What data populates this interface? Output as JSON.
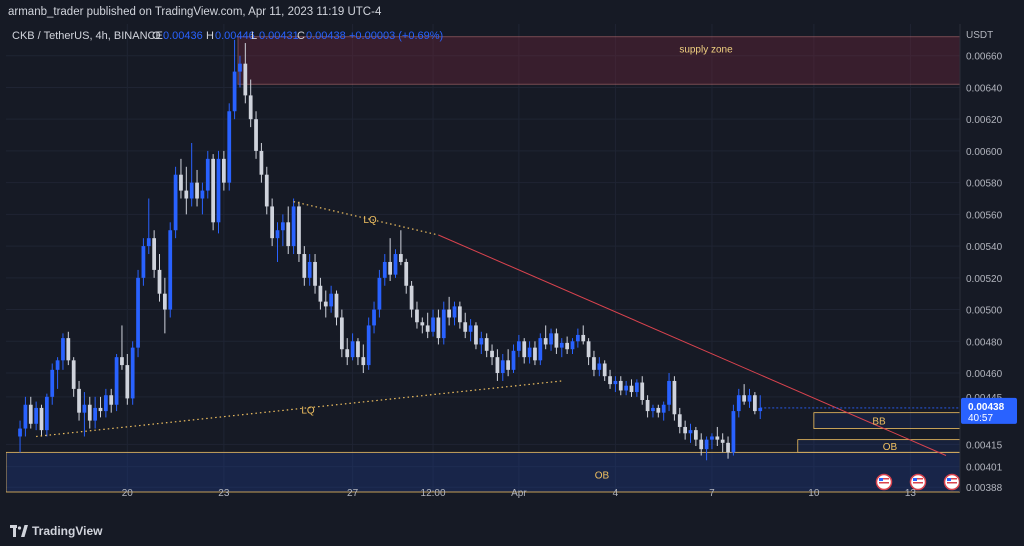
{
  "header": {
    "publisher": "armanb_trader published on TradingView.com, Apr 11, 2023 11:19 UTC-4"
  },
  "footer": {
    "brand": "TradingView"
  },
  "legend": {
    "symbol": "CKB / TetherUS, 4h, BINANCE",
    "o_label": "O",
    "o_value": "0.00436",
    "h_label": "H",
    "h_value": "0.00446",
    "l_label": "L",
    "l_value": "0.00431",
    "c_label": "C",
    "c_value": "0.00438",
    "change": "+0.00003 (+0.69%)"
  },
  "colors": {
    "up": "#2962ff",
    "down": "#cfd3dc",
    "trend": "#d9434e",
    "zone": "#f0c060",
    "bg": "#161a25"
  },
  "chart_data": {
    "type": "candlestick",
    "title": "CKB / TetherUS, 4h, BINANCE",
    "currency": "USDT",
    "ylim": [
      0.00385,
      0.0068
    ],
    "y_ticks": [
      "0.00660",
      "0.00640",
      "0.00620",
      "0.00600",
      "0.00580",
      "0.00560",
      "0.00540",
      "0.00520",
      "0.00500",
      "0.00480",
      "0.00460",
      "0.00445",
      "0.00415",
      "0.00401",
      "0.00388"
    ],
    "x_ticks": [
      {
        "label": "20",
        "i": 21
      },
      {
        "label": "23",
        "i": 39
      },
      {
        "label": "27",
        "i": 63
      },
      {
        "label": "12:00",
        "i": 78
      },
      {
        "label": "Apr",
        "i": 94
      },
      {
        "label": "4",
        "i": 112
      },
      {
        "label": "7",
        "i": 130
      },
      {
        "label": "10",
        "i": 149
      },
      {
        "label": "13",
        "i": 167
      }
    ],
    "n_slots": 176,
    "candles": [
      {
        "o": 0.0042,
        "h": 0.0043,
        "l": 0.0041,
        "c": 0.00425
      },
      {
        "o": 0.00425,
        "h": 0.00445,
        "l": 0.0042,
        "c": 0.0044
      },
      {
        "o": 0.0044,
        "h": 0.00445,
        "l": 0.00425,
        "c": 0.00428
      },
      {
        "o": 0.00428,
        "h": 0.00442,
        "l": 0.00424,
        "c": 0.00438
      },
      {
        "o": 0.00438,
        "h": 0.0044,
        "l": 0.0042,
        "c": 0.00424
      },
      {
        "o": 0.00424,
        "h": 0.00447,
        "l": 0.0042,
        "c": 0.00445
      },
      {
        "o": 0.00445,
        "h": 0.00466,
        "l": 0.0044,
        "c": 0.00462
      },
      {
        "o": 0.00462,
        "h": 0.0047,
        "l": 0.0045,
        "c": 0.00468
      },
      {
        "o": 0.00468,
        "h": 0.00485,
        "l": 0.00462,
        "c": 0.00482
      },
      {
        "o": 0.00482,
        "h": 0.00486,
        "l": 0.00465,
        "c": 0.00468
      },
      {
        "o": 0.00468,
        "h": 0.0047,
        "l": 0.00445,
        "c": 0.0045
      },
      {
        "o": 0.0045,
        "h": 0.00455,
        "l": 0.0043,
        "c": 0.00435
      },
      {
        "o": 0.00435,
        "h": 0.00448,
        "l": 0.0042,
        "c": 0.0044
      },
      {
        "o": 0.0044,
        "h": 0.00445,
        "l": 0.00425,
        "c": 0.0043
      },
      {
        "o": 0.0043,
        "h": 0.00445,
        "l": 0.00425,
        "c": 0.00438
      },
      {
        "o": 0.00438,
        "h": 0.00445,
        "l": 0.00432,
        "c": 0.00436
      },
      {
        "o": 0.00436,
        "h": 0.0045,
        "l": 0.00432,
        "c": 0.00446
      },
      {
        "o": 0.00446,
        "h": 0.0045,
        "l": 0.00435,
        "c": 0.0044
      },
      {
        "o": 0.0044,
        "h": 0.00472,
        "l": 0.00436,
        "c": 0.0047
      },
      {
        "o": 0.0047,
        "h": 0.0049,
        "l": 0.00462,
        "c": 0.00465
      },
      {
        "o": 0.00465,
        "h": 0.00472,
        "l": 0.0044,
        "c": 0.00444
      },
      {
        "o": 0.00444,
        "h": 0.0048,
        "l": 0.0044,
        "c": 0.00476
      },
      {
        "o": 0.00476,
        "h": 0.00525,
        "l": 0.0047,
        "c": 0.0052
      },
      {
        "o": 0.0052,
        "h": 0.00545,
        "l": 0.00515,
        "c": 0.0054
      },
      {
        "o": 0.0054,
        "h": 0.0057,
        "l": 0.00535,
        "c": 0.00545
      },
      {
        "o": 0.00545,
        "h": 0.0055,
        "l": 0.0052,
        "c": 0.00525
      },
      {
        "o": 0.00525,
        "h": 0.00535,
        "l": 0.00505,
        "c": 0.0051
      },
      {
        "o": 0.0051,
        "h": 0.0052,
        "l": 0.00485,
        "c": 0.005
      },
      {
        "o": 0.005,
        "h": 0.00555,
        "l": 0.00495,
        "c": 0.0055
      },
      {
        "o": 0.0055,
        "h": 0.0059,
        "l": 0.00545,
        "c": 0.00585
      },
      {
        "o": 0.00585,
        "h": 0.00595,
        "l": 0.0057,
        "c": 0.00575
      },
      {
        "o": 0.00575,
        "h": 0.0059,
        "l": 0.0056,
        "c": 0.0057
      },
      {
        "o": 0.0057,
        "h": 0.00605,
        "l": 0.00565,
        "c": 0.0058
      },
      {
        "o": 0.0058,
        "h": 0.00588,
        "l": 0.00565,
        "c": 0.0057
      },
      {
        "o": 0.0057,
        "h": 0.0058,
        "l": 0.0056,
        "c": 0.00575
      },
      {
        "o": 0.00575,
        "h": 0.006,
        "l": 0.0057,
        "c": 0.00595
      },
      {
        "o": 0.00595,
        "h": 0.00598,
        "l": 0.0055,
        "c": 0.00555
      },
      {
        "o": 0.00555,
        "h": 0.006,
        "l": 0.00548,
        "c": 0.00595
      },
      {
        "o": 0.00595,
        "h": 0.006,
        "l": 0.00575,
        "c": 0.0058
      },
      {
        "o": 0.0058,
        "h": 0.0063,
        "l": 0.00575,
        "c": 0.00625
      },
      {
        "o": 0.00625,
        "h": 0.0067,
        "l": 0.0062,
        "c": 0.0065
      },
      {
        "o": 0.0065,
        "h": 0.0066,
        "l": 0.0064,
        "c": 0.00655
      },
      {
        "o": 0.00655,
        "h": 0.00668,
        "l": 0.0063,
        "c": 0.00635
      },
      {
        "o": 0.00635,
        "h": 0.00645,
        "l": 0.00615,
        "c": 0.0062
      },
      {
        "o": 0.0062,
        "h": 0.00625,
        "l": 0.00595,
        "c": 0.006
      },
      {
        "o": 0.006,
        "h": 0.00605,
        "l": 0.0058,
        "c": 0.00585
      },
      {
        "o": 0.00585,
        "h": 0.0059,
        "l": 0.0056,
        "c": 0.00565
      },
      {
        "o": 0.00565,
        "h": 0.0057,
        "l": 0.0054,
        "c": 0.00545
      },
      {
        "o": 0.00545,
        "h": 0.00555,
        "l": 0.0053,
        "c": 0.0055
      },
      {
        "o": 0.0055,
        "h": 0.0056,
        "l": 0.0054,
        "c": 0.00555
      },
      {
        "o": 0.00555,
        "h": 0.00565,
        "l": 0.00535,
        "c": 0.0054
      },
      {
        "o": 0.0054,
        "h": 0.0057,
        "l": 0.00535,
        "c": 0.00565
      },
      {
        "o": 0.00565,
        "h": 0.00568,
        "l": 0.0053,
        "c": 0.00535
      },
      {
        "o": 0.00535,
        "h": 0.0054,
        "l": 0.00515,
        "c": 0.0052
      },
      {
        "o": 0.0052,
        "h": 0.00535,
        "l": 0.00515,
        "c": 0.0053
      },
      {
        "o": 0.0053,
        "h": 0.00535,
        "l": 0.0051,
        "c": 0.00515
      },
      {
        "o": 0.00515,
        "h": 0.0052,
        "l": 0.005,
        "c": 0.00505
      },
      {
        "o": 0.00505,
        "h": 0.00512,
        "l": 0.00495,
        "c": 0.00502
      },
      {
        "o": 0.00502,
        "h": 0.00515,
        "l": 0.00498,
        "c": 0.0051
      },
      {
        "o": 0.0051,
        "h": 0.00512,
        "l": 0.0049,
        "c": 0.00495
      },
      {
        "o": 0.00495,
        "h": 0.005,
        "l": 0.0047,
        "c": 0.00475
      },
      {
        "o": 0.00475,
        "h": 0.00482,
        "l": 0.00465,
        "c": 0.0047
      },
      {
        "o": 0.0047,
        "h": 0.00485,
        "l": 0.00468,
        "c": 0.0048
      },
      {
        "o": 0.0048,
        "h": 0.00482,
        "l": 0.00465,
        "c": 0.0047
      },
      {
        "o": 0.0047,
        "h": 0.00478,
        "l": 0.0046,
        "c": 0.00465
      },
      {
        "o": 0.00465,
        "h": 0.00495,
        "l": 0.00462,
        "c": 0.0049
      },
      {
        "o": 0.0049,
        "h": 0.00505,
        "l": 0.00485,
        "c": 0.005
      },
      {
        "o": 0.005,
        "h": 0.00525,
        "l": 0.00495,
        "c": 0.0052
      },
      {
        "o": 0.0052,
        "h": 0.00535,
        "l": 0.00515,
        "c": 0.0053
      },
      {
        "o": 0.0053,
        "h": 0.00545,
        "l": 0.00518,
        "c": 0.00522
      },
      {
        "o": 0.00522,
        "h": 0.00538,
        "l": 0.0052,
        "c": 0.00535
      },
      {
        "o": 0.00535,
        "h": 0.0055,
        "l": 0.00528,
        "c": 0.0053
      },
      {
        "o": 0.0053,
        "h": 0.00532,
        "l": 0.0051,
        "c": 0.00515
      },
      {
        "o": 0.00515,
        "h": 0.00518,
        "l": 0.00495,
        "c": 0.005
      },
      {
        "o": 0.005,
        "h": 0.00505,
        "l": 0.00488,
        "c": 0.00492
      },
      {
        "o": 0.00492,
        "h": 0.00495,
        "l": 0.00485,
        "c": 0.0049
      },
      {
        "o": 0.0049,
        "h": 0.00498,
        "l": 0.00482,
        "c": 0.00486
      },
      {
        "o": 0.00486,
        "h": 0.005,
        "l": 0.00483,
        "c": 0.00495
      },
      {
        "o": 0.00495,
        "h": 0.005,
        "l": 0.00478,
        "c": 0.00482
      },
      {
        "o": 0.00482,
        "h": 0.00505,
        "l": 0.00478,
        "c": 0.005
      },
      {
        "o": 0.005,
        "h": 0.00508,
        "l": 0.0049,
        "c": 0.00495
      },
      {
        "o": 0.00495,
        "h": 0.00505,
        "l": 0.0049,
        "c": 0.00502
      },
      {
        "o": 0.00502,
        "h": 0.00505,
        "l": 0.00488,
        "c": 0.00492
      },
      {
        "o": 0.00492,
        "h": 0.00498,
        "l": 0.00482,
        "c": 0.00486
      },
      {
        "o": 0.00486,
        "h": 0.00494,
        "l": 0.0048,
        "c": 0.0049
      },
      {
        "o": 0.0049,
        "h": 0.00492,
        "l": 0.00475,
        "c": 0.00478
      },
      {
        "o": 0.00478,
        "h": 0.00486,
        "l": 0.00472,
        "c": 0.00482
      },
      {
        "o": 0.00482,
        "h": 0.00485,
        "l": 0.0047,
        "c": 0.00474
      },
      {
        "o": 0.00474,
        "h": 0.00478,
        "l": 0.00465,
        "c": 0.0047
      },
      {
        "o": 0.0047,
        "h": 0.00475,
        "l": 0.00455,
        "c": 0.0046
      },
      {
        "o": 0.0046,
        "h": 0.00472,
        "l": 0.00455,
        "c": 0.00468
      },
      {
        "o": 0.00468,
        "h": 0.00475,
        "l": 0.00458,
        "c": 0.00462
      },
      {
        "o": 0.00462,
        "h": 0.00478,
        "l": 0.0046,
        "c": 0.00474
      },
      {
        "o": 0.00474,
        "h": 0.00484,
        "l": 0.0047,
        "c": 0.0048
      },
      {
        "o": 0.0048,
        "h": 0.00482,
        "l": 0.00466,
        "c": 0.0047
      },
      {
        "o": 0.0047,
        "h": 0.0048,
        "l": 0.00466,
        "c": 0.00476
      },
      {
        "o": 0.00476,
        "h": 0.0048,
        "l": 0.00465,
        "c": 0.00468
      },
      {
        "o": 0.00468,
        "h": 0.00485,
        "l": 0.00465,
        "c": 0.00482
      },
      {
        "o": 0.00482,
        "h": 0.0049,
        "l": 0.00475,
        "c": 0.00478
      },
      {
        "o": 0.00478,
        "h": 0.00488,
        "l": 0.00474,
        "c": 0.00485
      },
      {
        "o": 0.00485,
        "h": 0.00488,
        "l": 0.00472,
        "c": 0.00476
      },
      {
        "o": 0.00476,
        "h": 0.00482,
        "l": 0.0047,
        "c": 0.00479
      },
      {
        "o": 0.00479,
        "h": 0.00483,
        "l": 0.00472,
        "c": 0.00475
      },
      {
        "o": 0.00475,
        "h": 0.00482,
        "l": 0.00472,
        "c": 0.0048
      },
      {
        "o": 0.0048,
        "h": 0.00488,
        "l": 0.00476,
        "c": 0.00484
      },
      {
        "o": 0.00484,
        "h": 0.0049,
        "l": 0.00478,
        "c": 0.0048
      },
      {
        "o": 0.0048,
        "h": 0.00482,
        "l": 0.00465,
        "c": 0.0047
      },
      {
        "o": 0.0047,
        "h": 0.00474,
        "l": 0.00458,
        "c": 0.00462
      },
      {
        "o": 0.00462,
        "h": 0.0047,
        "l": 0.00458,
        "c": 0.00466
      },
      {
        "o": 0.00466,
        "h": 0.00468,
        "l": 0.00455,
        "c": 0.00458
      },
      {
        "o": 0.00458,
        "h": 0.00462,
        "l": 0.0045,
        "c": 0.00453
      },
      {
        "o": 0.00453,
        "h": 0.00458,
        "l": 0.00448,
        "c": 0.00455
      },
      {
        "o": 0.00455,
        "h": 0.00458,
        "l": 0.00446,
        "c": 0.00449
      },
      {
        "o": 0.00449,
        "h": 0.00455,
        "l": 0.00446,
        "c": 0.00452
      },
      {
        "o": 0.00452,
        "h": 0.00456,
        "l": 0.00445,
        "c": 0.00448
      },
      {
        "o": 0.00448,
        "h": 0.00456,
        "l": 0.00445,
        "c": 0.00454
      },
      {
        "o": 0.00454,
        "h": 0.00458,
        "l": 0.0044,
        "c": 0.00443
      },
      {
        "o": 0.00443,
        "h": 0.00446,
        "l": 0.00432,
        "c": 0.00436
      },
      {
        "o": 0.00436,
        "h": 0.0044,
        "l": 0.00432,
        "c": 0.00438
      },
      {
        "o": 0.00438,
        "h": 0.0044,
        "l": 0.00432,
        "c": 0.00435
      },
      {
        "o": 0.00435,
        "h": 0.00442,
        "l": 0.0043,
        "c": 0.0044
      },
      {
        "o": 0.0044,
        "h": 0.0046,
        "l": 0.00436,
        "c": 0.00455
      },
      {
        "o": 0.00455,
        "h": 0.00458,
        "l": 0.0043,
        "c": 0.00434
      },
      {
        "o": 0.00434,
        "h": 0.00438,
        "l": 0.00422,
        "c": 0.00426
      },
      {
        "o": 0.00426,
        "h": 0.0043,
        "l": 0.00418,
        "c": 0.00422
      },
      {
        "o": 0.00422,
        "h": 0.00428,
        "l": 0.00416,
        "c": 0.00424
      },
      {
        "o": 0.00424,
        "h": 0.00426,
        "l": 0.00414,
        "c": 0.00418
      },
      {
        "o": 0.00418,
        "h": 0.00422,
        "l": 0.00408,
        "c": 0.00412
      },
      {
        "o": 0.00412,
        "h": 0.0042,
        "l": 0.00405,
        "c": 0.00418
      },
      {
        "o": 0.00418,
        "h": 0.00422,
        "l": 0.00412,
        "c": 0.0042
      },
      {
        "o": 0.0042,
        "h": 0.00426,
        "l": 0.00414,
        "c": 0.00418
      },
      {
        "o": 0.00418,
        "h": 0.00422,
        "l": 0.0041,
        "c": 0.00416
      },
      {
        "o": 0.00416,
        "h": 0.0042,
        "l": 0.00406,
        "c": 0.0041
      },
      {
        "o": 0.0041,
        "h": 0.0044,
        "l": 0.00408,
        "c": 0.00436
      },
      {
        "o": 0.00436,
        "h": 0.0045,
        "l": 0.00432,
        "c": 0.00446
      },
      {
        "o": 0.00446,
        "h": 0.00453,
        "l": 0.0044,
        "c": 0.00442
      },
      {
        "o": 0.00442,
        "h": 0.0045,
        "l": 0.00438,
        "c": 0.00446
      },
      {
        "o": 0.00446,
        "h": 0.00448,
        "l": 0.00434,
        "c": 0.00436
      },
      {
        "o": 0.00436,
        "h": 0.00446,
        "l": 0.00431,
        "c": 0.00438
      }
    ],
    "annotations": [
      {
        "text": "supply zone",
        "kind": "zone",
        "y_low": 0.00642,
        "y_high": 0.00672
      },
      {
        "text": "LQ",
        "kind": "liquidity-upper"
      },
      {
        "text": "LQ",
        "kind": "liquidity-lower"
      },
      {
        "text": "BB",
        "kind": "breaker",
        "y_low": 0.00425,
        "y_high": 0.00435
      },
      {
        "text": "OB",
        "kind": "order-block",
        "y_low": 0.0041,
        "y_high": 0.00418
      },
      {
        "text": "OB",
        "kind": "order-block-lower",
        "y_low": 0.00385,
        "y_high": 0.0041
      }
    ],
    "last_price": "0.00438",
    "countdown": "40:57",
    "currency_label": "USDT"
  }
}
